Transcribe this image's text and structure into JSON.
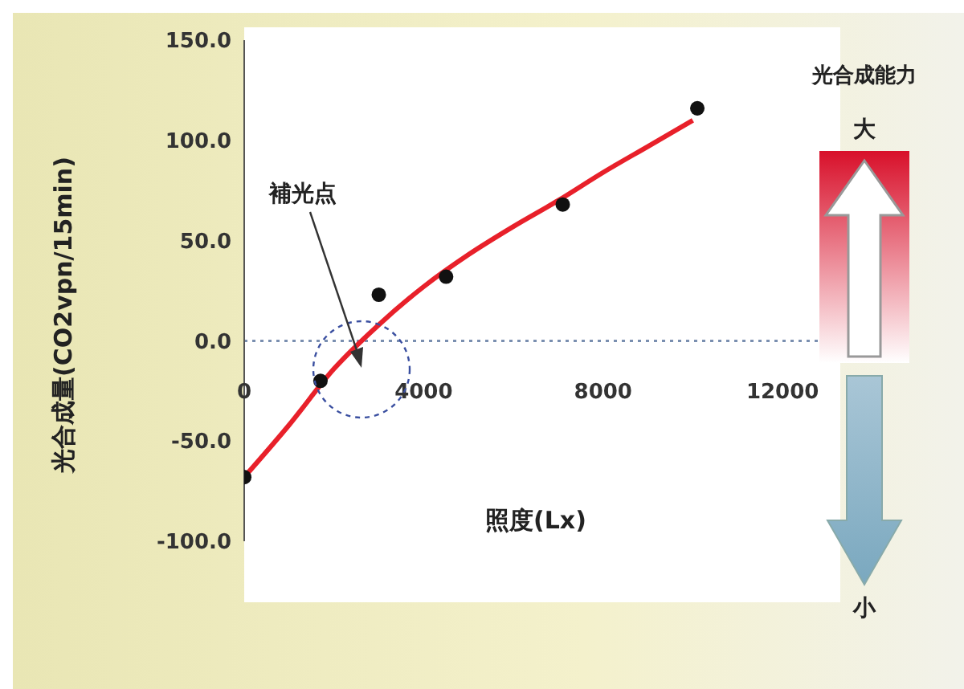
{
  "chart_data": {
    "type": "scatter",
    "ylabel": "光合成量(CO2vpn/15min)",
    "xlabel": "照度(Lx)",
    "xlim": [
      0,
      13000
    ],
    "xticks": [
      0,
      4000,
      8000,
      12000
    ],
    "ylim": [
      -100,
      150
    ],
    "yticks": [
      {
        "value": -100,
        "label": "-100.0"
      },
      {
        "value": -50,
        "label": "-50.0"
      },
      {
        "value": 0,
        "label": "0.0"
      },
      {
        "value": 50,
        "label": "50.0"
      },
      {
        "value": 100,
        "label": "100.0"
      },
      {
        "value": 150,
        "label": "150.0"
      }
    ],
    "grid": false,
    "legend": false,
    "ref_lines": [
      {
        "axis": "y",
        "value": 0,
        "color": "#7a8fb0",
        "line_style": "dotted"
      }
    ],
    "series": [
      {
        "type": "line",
        "color": "#e8202a",
        "x": [
          0,
          1000,
          2000,
          3000,
          4000,
          5000,
          6000,
          7000,
          8000,
          9000,
          10000
        ],
        "values": [
          -68,
          -42,
          -14,
          8,
          27,
          43,
          57,
          70,
          84,
          97,
          110
        ]
      },
      {
        "color": "#111111",
        "marker": "circle",
        "x": [
          0,
          1700,
          3000,
          4500,
          7100,
          10100
        ],
        "values": [
          -68,
          -20,
          23,
          32,
          68,
          116
        ]
      }
    ],
    "annotations": [
      {
        "text": "補光点",
        "x": 2600,
        "y": 0
      },
      "光合成能力",
      "大",
      "小"
    ]
  }
}
